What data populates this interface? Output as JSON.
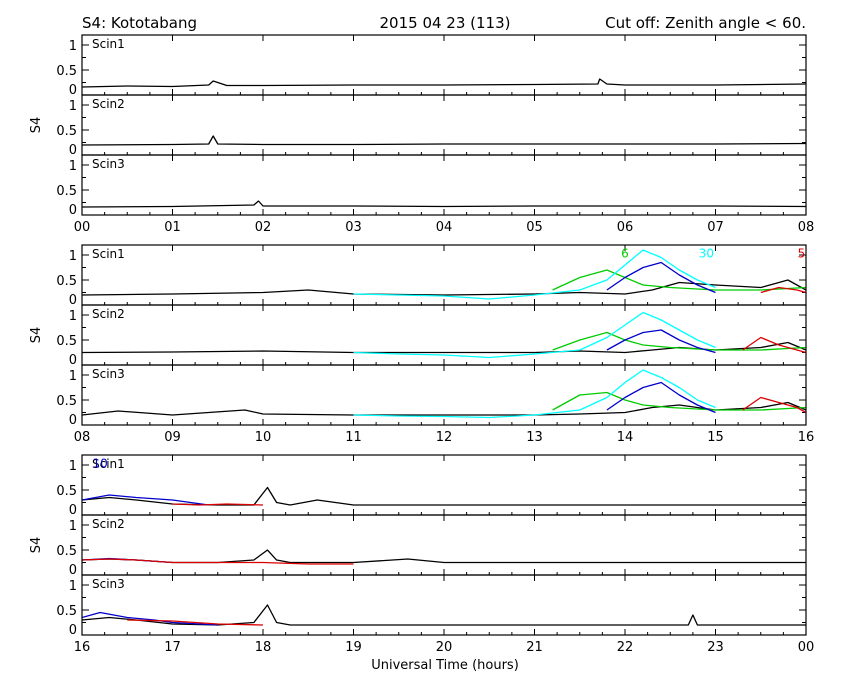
{
  "header": {
    "station": "S4: Kototabang",
    "date": "2015 04 23 (113)",
    "cutoff": "Cut off: Zenith angle < 60."
  },
  "xlabel": "Universal Time (hours)",
  "colors": {
    "black": "#000000",
    "green": "#00cc00",
    "blue": "#0000cc",
    "cyan": "#00ffff",
    "red": "#dd0000"
  },
  "chart_data": [
    {
      "type": "line",
      "x_range": [
        0,
        8
      ],
      "x_ticks": [
        "00",
        "01",
        "02",
        "03",
        "04",
        "05",
        "06",
        "07",
        "08"
      ],
      "ylabel": "S4",
      "ylim": [
        0,
        1.2
      ],
      "y_ticks": [
        "0",
        "0.5",
        "1"
      ],
      "panels": [
        {
          "label": "Scin1",
          "prn_labels": [],
          "series": [
            {
              "color": "black",
              "x": [
                0,
                0.5,
                1,
                1.4,
                1.45,
                1.6,
                2,
                3,
                4,
                5,
                5.7,
                5.72,
                5.8,
                6,
                7,
                8
              ],
              "y": [
                0.16,
                0.18,
                0.17,
                0.2,
                0.28,
                0.19,
                0.19,
                0.2,
                0.2,
                0.21,
                0.22,
                0.32,
                0.22,
                0.2,
                0.2,
                0.22
              ]
            }
          ]
        },
        {
          "label": "Scin2",
          "prn_labels": [],
          "series": [
            {
              "color": "black",
              "x": [
                0,
                1,
                1.4,
                1.45,
                1.5,
                2,
                3,
                4,
                5,
                6,
                7,
                8
              ],
              "y": [
                0.2,
                0.21,
                0.22,
                0.38,
                0.22,
                0.21,
                0.21,
                0.22,
                0.22,
                0.22,
                0.22,
                0.23
              ]
            }
          ]
        },
        {
          "label": "Scin3",
          "prn_labels": [],
          "series": [
            {
              "color": "black",
              "x": [
                0,
                1,
                1.9,
                1.95,
                2,
                3,
                4,
                5,
                6,
                7,
                8
              ],
              "y": [
                0.16,
                0.17,
                0.2,
                0.28,
                0.18,
                0.18,
                0.17,
                0.18,
                0.18,
                0.18,
                0.17
              ]
            }
          ]
        }
      ]
    },
    {
      "type": "line",
      "x_range": [
        8,
        16
      ],
      "x_ticks": [
        "08",
        "09",
        "10",
        "11",
        "12",
        "13",
        "14",
        "15",
        "16"
      ],
      "ylabel": "S4",
      "ylim": [
        0,
        1.2
      ],
      "y_ticks": [
        "0",
        "0.5",
        "1"
      ],
      "panels": [
        {
          "label": "Scin1",
          "prn_labels": [
            {
              "text": "6",
              "color": "green",
              "x": 14.0,
              "y": 0.95
            },
            {
              "text": "30",
              "color": "cyan",
              "x": 14.9,
              "y": 0.95
            },
            {
              "text": "5",
              "color": "red",
              "x": 15.95,
              "y": 0.95
            }
          ],
          "series": [
            {
              "color": "black",
              "x": [
                8,
                9,
                10,
                10.5,
                11,
                12,
                13,
                13.5,
                14,
                14.3,
                14.6,
                15,
                15.5,
                15.8,
                16
              ],
              "y": [
                0.2,
                0.22,
                0.25,
                0.3,
                0.22,
                0.2,
                0.22,
                0.25,
                0.22,
                0.3,
                0.45,
                0.4,
                0.35,
                0.5,
                0.3
              ]
            },
            {
              "color": "green",
              "x": [
                13.2,
                13.5,
                13.8,
                14.0,
                14.2,
                14.5,
                15.0,
                15.5,
                16.0
              ],
              "y": [
                0.3,
                0.55,
                0.7,
                0.55,
                0.4,
                0.35,
                0.3,
                0.3,
                0.35
              ]
            },
            {
              "color": "cyan",
              "x": [
                11,
                11.5,
                12,
                12.5,
                13,
                13.5,
                13.8,
                14.0,
                14.2,
                14.4,
                14.6,
                14.8,
                15.0
              ],
              "y": [
                0.22,
                0.2,
                0.18,
                0.12,
                0.2,
                0.3,
                0.5,
                0.8,
                1.1,
                0.95,
                0.7,
                0.5,
                0.35
              ]
            },
            {
              "color": "blue",
              "x": [
                13.8,
                14.0,
                14.2,
                14.4,
                14.6,
                14.8,
                15.0
              ],
              "y": [
                0.3,
                0.55,
                0.75,
                0.85,
                0.6,
                0.4,
                0.25
              ]
            },
            {
              "color": "red",
              "x": [
                15.5,
                15.7,
                15.9,
                16.0
              ],
              "y": [
                0.25,
                0.35,
                0.3,
                0.25
              ]
            }
          ]
        },
        {
          "label": "Scin2",
          "prn_labels": [],
          "series": [
            {
              "color": "black",
              "x": [
                8,
                9,
                10,
                11,
                12,
                13,
                13.5,
                14,
                14.3,
                14.6,
                15,
                15.5,
                15.8,
                16
              ],
              "y": [
                0.25,
                0.26,
                0.28,
                0.25,
                0.25,
                0.25,
                0.28,
                0.25,
                0.3,
                0.35,
                0.3,
                0.35,
                0.45,
                0.3
              ]
            },
            {
              "color": "green",
              "x": [
                13.2,
                13.5,
                13.8,
                14.0,
                14.2,
                14.5,
                15.0,
                15.5,
                16.0
              ],
              "y": [
                0.3,
                0.5,
                0.65,
                0.5,
                0.4,
                0.35,
                0.3,
                0.3,
                0.35
              ]
            },
            {
              "color": "cyan",
              "x": [
                11,
                11.5,
                12,
                12.5,
                13,
                13.5,
                13.8,
                14.0,
                14.2,
                14.4,
                14.6,
                14.8,
                15.0
              ],
              "y": [
                0.25,
                0.22,
                0.2,
                0.15,
                0.22,
                0.3,
                0.55,
                0.8,
                1.05,
                0.9,
                0.7,
                0.5,
                0.35
              ]
            },
            {
              "color": "blue",
              "x": [
                13.8,
                14.0,
                14.2,
                14.4,
                14.6,
                14.8,
                15.0
              ],
              "y": [
                0.3,
                0.5,
                0.65,
                0.7,
                0.5,
                0.35,
                0.25
              ]
            },
            {
              "color": "red",
              "x": [
                15.3,
                15.5,
                15.7,
                15.9,
                16.0
              ],
              "y": [
                0.3,
                0.55,
                0.4,
                0.3,
                0.25
              ]
            }
          ]
        },
        {
          "label": "Scin3",
          "prn_labels": [],
          "series": [
            {
              "color": "black",
              "x": [
                8,
                8.4,
                9,
                9.8,
                10,
                11,
                12,
                13,
                13.5,
                14,
                14.3,
                14.6,
                15,
                15.5,
                15.8,
                16
              ],
              "y": [
                0.2,
                0.28,
                0.2,
                0.3,
                0.22,
                0.2,
                0.2,
                0.2,
                0.22,
                0.25,
                0.35,
                0.4,
                0.3,
                0.35,
                0.45,
                0.3
              ]
            },
            {
              "color": "green",
              "x": [
                13.2,
                13.5,
                13.8,
                14.0,
                14.2,
                14.5,
                15.0,
                15.5,
                16.0
              ],
              "y": [
                0.3,
                0.6,
                0.65,
                0.5,
                0.4,
                0.35,
                0.3,
                0.3,
                0.35
              ]
            },
            {
              "color": "cyan",
              "x": [
                11,
                11.5,
                12,
                12.5,
                13,
                13.5,
                13.8,
                14.0,
                14.2,
                14.4,
                14.6,
                14.8,
                15.0
              ],
              "y": [
                0.2,
                0.18,
                0.17,
                0.15,
                0.2,
                0.3,
                0.55,
                0.85,
                1.1,
                0.95,
                0.75,
                0.5,
                0.35
              ]
            },
            {
              "color": "blue",
              "x": [
                13.8,
                14.0,
                14.2,
                14.4,
                14.6,
                14.8,
                15.0
              ],
              "y": [
                0.3,
                0.55,
                0.75,
                0.85,
                0.6,
                0.4,
                0.25
              ]
            },
            {
              "color": "red",
              "x": [
                15.3,
                15.5,
                15.7,
                15.9,
                16.0
              ],
              "y": [
                0.3,
                0.55,
                0.45,
                0.35,
                0.25
              ]
            }
          ]
        }
      ]
    },
    {
      "type": "line",
      "x_range": [
        16,
        24
      ],
      "x_ticks": [
        "16",
        "17",
        "18",
        "19",
        "20",
        "21",
        "22",
        "23",
        "00"
      ],
      "ylabel": "S4",
      "ylim": [
        0,
        1.2
      ],
      "y_ticks": [
        "0",
        "0.5",
        "1"
      ],
      "panels": [
        {
          "label": "Scin1",
          "prn_labels": [
            {
              "text": "10",
              "color": "blue",
              "x": 16.2,
              "y": 0.95
            }
          ],
          "series": [
            {
              "color": "black",
              "x": [
                16,
                16.3,
                16.6,
                17,
                17.5,
                17.9,
                18.05,
                18.15,
                18.3,
                18.6,
                19,
                20,
                21,
                22,
                23,
                24
              ],
              "y": [
                0.3,
                0.35,
                0.3,
                0.22,
                0.2,
                0.2,
                0.55,
                0.25,
                0.2,
                0.3,
                0.2,
                0.2,
                0.2,
                0.2,
                0.2,
                0.2
              ]
            },
            {
              "color": "blue",
              "x": [
                16,
                16.3,
                16.6,
                17,
                17.4
              ],
              "y": [
                0.3,
                0.4,
                0.35,
                0.3,
                0.2
              ]
            },
            {
              "color": "red",
              "x": [
                17,
                17.3,
                17.6,
                18
              ],
              "y": [
                0.22,
                0.2,
                0.22,
                0.2
              ]
            }
          ]
        },
        {
          "label": "Scin2",
          "prn_labels": [],
          "series": [
            {
              "color": "black",
              "x": [
                16,
                16.3,
                16.6,
                17,
                17.5,
                17.9,
                18.05,
                18.15,
                18.3,
                19,
                19.6,
                20,
                21,
                22,
                23,
                24
              ],
              "y": [
                0.3,
                0.32,
                0.3,
                0.25,
                0.25,
                0.3,
                0.5,
                0.3,
                0.25,
                0.25,
                0.32,
                0.25,
                0.25,
                0.25,
                0.25,
                0.25
              ]
            },
            {
              "color": "blue",
              "x": [
                16,
                16.3,
                16.6,
                17
              ],
              "y": [
                0.3,
                0.33,
                0.3,
                0.25
              ]
            },
            {
              "color": "red",
              "x": [
                16,
                16.3,
                16.6,
                17,
                17.5,
                18,
                18.5,
                19
              ],
              "y": [
                0.3,
                0.32,
                0.3,
                0.25,
                0.25,
                0.25,
                0.22,
                0.22
              ]
            }
          ]
        },
        {
          "label": "Scin3",
          "prn_labels": [],
          "series": [
            {
              "color": "black",
              "x": [
                16,
                16.3,
                16.6,
                17,
                17.5,
                17.9,
                18.05,
                18.15,
                18.3,
                19,
                20,
                21,
                22,
                22.7,
                22.75,
                22.8,
                23,
                24
              ],
              "y": [
                0.3,
                0.35,
                0.3,
                0.22,
                0.2,
                0.25,
                0.6,
                0.25,
                0.2,
                0.2,
                0.2,
                0.2,
                0.2,
                0.2,
                0.4,
                0.2,
                0.2,
                0.2
              ]
            },
            {
              "color": "blue",
              "x": [
                16,
                16.2,
                16.5,
                16.8,
                17,
                17.5
              ],
              "y": [
                0.35,
                0.45,
                0.35,
                0.3,
                0.25,
                0.2
              ]
            },
            {
              "color": "red",
              "x": [
                16.5,
                17,
                17.5,
                18
              ],
              "y": [
                0.3,
                0.28,
                0.22,
                0.2
              ]
            }
          ]
        }
      ]
    }
  ]
}
